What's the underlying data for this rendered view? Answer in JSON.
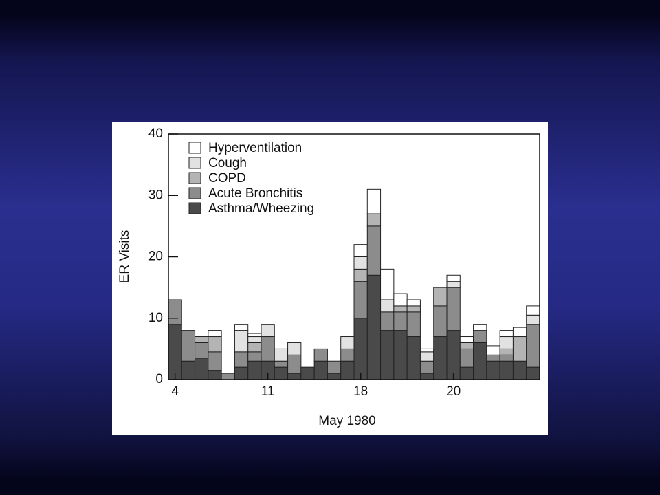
{
  "chart_data": {
    "type": "stacked_bar",
    "x_label": "May 1980",
    "y_label": "ER Visits",
    "categories": [
      "4",
      null,
      null,
      null,
      null,
      null,
      null,
      "11",
      null,
      null,
      null,
      null,
      null,
      null,
      "18",
      null,
      null,
      null,
      null,
      null,
      null,
      "20",
      null,
      null,
      null,
      null,
      null,
      null
    ],
    "ylim": [
      0,
      40
    ],
    "yticks": [
      0,
      10,
      20,
      30,
      40
    ],
    "legend": "top-left",
    "series": [
      {
        "name": "Asthma/Wheezing",
        "color": "#4a4a4a",
        "values": [
          9,
          3,
          3.5,
          1.5,
          0,
          2,
          3,
          3,
          2,
          1,
          2,
          3,
          1,
          3,
          10,
          17,
          8,
          8,
          7,
          1,
          7,
          8,
          2,
          6,
          3,
          3,
          3,
          2
        ]
      },
      {
        "name": "Acute Bronchitis",
        "color": "#8c8c8c",
        "values": [
          4,
          5,
          2.5,
          3,
          1,
          2.5,
          1.5,
          4,
          1,
          3,
          0,
          2,
          2,
          2,
          6,
          8,
          3,
          3,
          4,
          2,
          5,
          7,
          3,
          2,
          1,
          1,
          0,
          7
        ]
      },
      {
        "name": "COPD",
        "color": "#b4b4b4",
        "values": [
          0,
          0,
          1,
          2.5,
          0,
          0,
          1.5,
          0,
          0,
          0,
          0,
          0,
          0,
          0,
          2,
          2,
          0,
          1,
          1,
          0,
          3,
          0,
          1,
          0,
          0,
          1,
          4,
          0
        ]
      },
      {
        "name": "Cough",
        "color": "#e2e2e2",
        "values": [
          0,
          0,
          0,
          0,
          0,
          3.5,
          1,
          2,
          2,
          2,
          0,
          0,
          0,
          2,
          2,
          0,
          2,
          0,
          0,
          1.5,
          0,
          1,
          0,
          0,
          0,
          2,
          0,
          1.5
        ]
      },
      {
        "name": "Hyperventilation",
        "color": "#ffffff",
        "values": [
          0,
          0,
          0,
          1,
          0,
          1,
          0.5,
          0,
          0,
          0,
          0,
          0,
          0,
          0,
          2,
          4,
          5,
          2,
          1,
          0.5,
          0,
          1,
          1,
          1,
          1.5,
          1,
          1.5,
          1.5
        ]
      }
    ]
  }
}
